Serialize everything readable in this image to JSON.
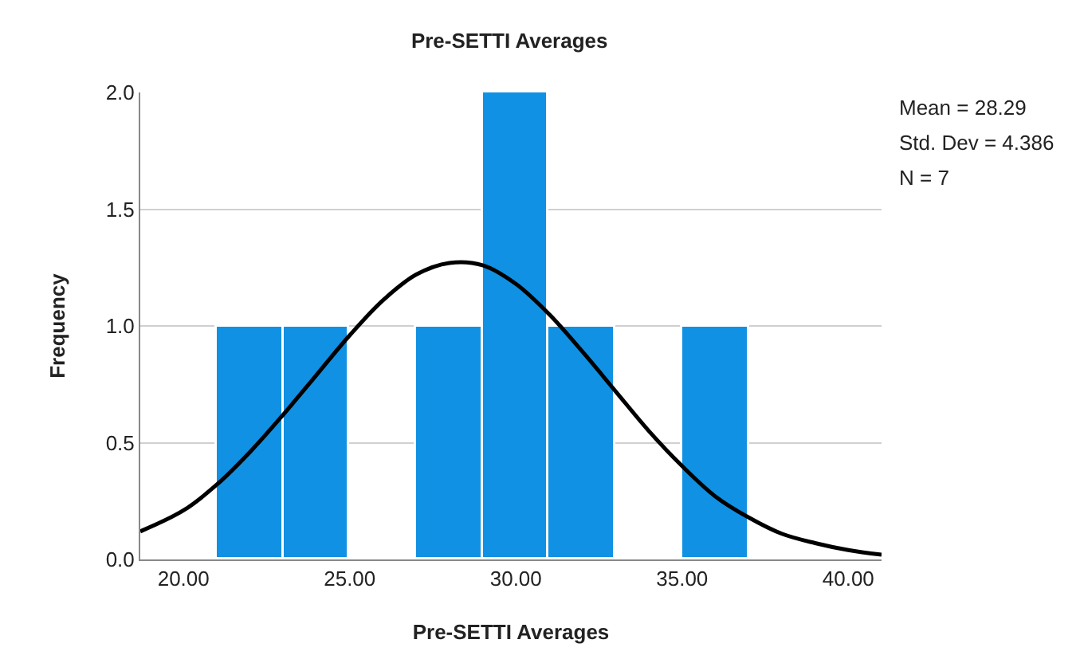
{
  "chart_data": {
    "type": "histogram",
    "title": "Pre-SETTI Averages",
    "xlabel": "Pre-SETTI Averages",
    "ylabel": "Frequency",
    "bins": [
      21,
      23,
      25,
      27,
      29,
      31,
      33,
      35,
      37
    ],
    "values": [
      1,
      1,
      0,
      1,
      2,
      1,
      0,
      1
    ],
    "color": "#1191e3",
    "series": [
      {
        "type": "line",
        "color": "#000000",
        "x": [
          18.7,
          20,
          21,
          22,
          23,
          24,
          25,
          26,
          27,
          28,
          29,
          30,
          31,
          32,
          33,
          34,
          35,
          36,
          37,
          38,
          39,
          40,
          41
        ],
        "values": [
          0.12,
          0.21,
          0.32,
          0.46,
          0.62,
          0.79,
          0.96,
          1.11,
          1.22,
          1.27,
          1.26,
          1.18,
          1.05,
          0.89,
          0.72,
          0.55,
          0.4,
          0.27,
          0.18,
          0.11,
          0.07,
          0.04,
          0.02
        ]
      }
    ],
    "xlim": [
      18.7,
      41.0
    ],
    "xticks": [
      {
        "value": 20,
        "label": "20.00"
      },
      {
        "value": 25,
        "label": "25.00"
      },
      {
        "value": 30,
        "label": "30.00"
      },
      {
        "value": 35,
        "label": "35.00"
      },
      {
        "value": 40,
        "label": "40.00"
      }
    ],
    "ylim": [
      0,
      2.0
    ],
    "yticks": [
      {
        "value": 0,
        "label": "0.0"
      },
      {
        "value": 0.5,
        "label": "0.5"
      },
      {
        "value": 1.0,
        "label": "1.0"
      },
      {
        "value": 1.5,
        "label": "1.5"
      },
      {
        "value": 2.0,
        "label": "2.0"
      }
    ],
    "grid": "y",
    "marker": "none",
    "line_style": "solid",
    "annotations": [
      "Mean = 28.29",
      "Std. Dev = 4.386",
      "N = 7"
    ]
  }
}
